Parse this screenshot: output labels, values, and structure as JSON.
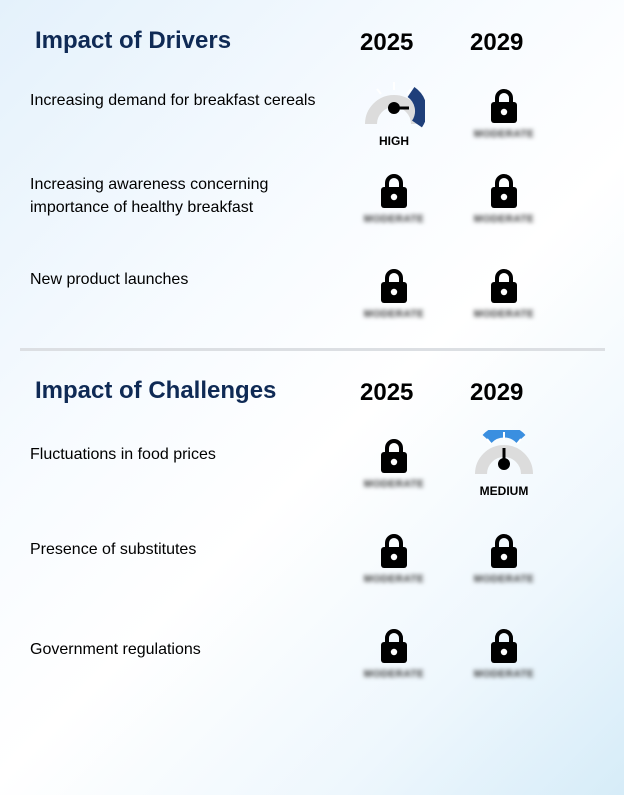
{
  "drivers": {
    "title": "Impact of Drivers",
    "year_1": "2025",
    "year_2": "2029",
    "rows": [
      {
        "label": "Increasing demand for breakfast cereals",
        "cell_2025": {
          "type": "gauge",
          "level": "HIGH",
          "fill_color": "#1f3f7a"
        },
        "cell_2029": {
          "type": "locked",
          "hidden_text": "MODERATE"
        }
      },
      {
        "label": "Increasing awareness concerning importance of healthy breakfast",
        "cell_2025": {
          "type": "locked",
          "hidden_text": "MODERATE"
        },
        "cell_2029": {
          "type": "locked",
          "hidden_text": "MODERATE"
        }
      },
      {
        "label": "New product launches",
        "cell_2025": {
          "type": "locked",
          "hidden_text": "MODERATE"
        },
        "cell_2029": {
          "type": "locked",
          "hidden_text": "MODERATE"
        }
      }
    ]
  },
  "challenges": {
    "title": "Impact of Challenges",
    "year_1": "2025",
    "year_2": "2029",
    "rows": [
      {
        "label": "Fluctuations in food prices",
        "cell_2025": {
          "type": "locked",
          "hidden_text": "MODERATE"
        },
        "cell_2029": {
          "type": "gauge",
          "level": "MEDIUM",
          "fill_color": "#3a8fe0"
        }
      },
      {
        "label": "Presence of substitutes",
        "cell_2025": {
          "type": "locked",
          "hidden_text": "MODERATE"
        },
        "cell_2029": {
          "type": "locked",
          "hidden_text": "MODERATE"
        }
      },
      {
        "label": "Government regulations",
        "cell_2025": {
          "type": "locked",
          "hidden_text": "MODERATE"
        },
        "cell_2029": {
          "type": "locked",
          "hidden_text": "MODERATE"
        }
      }
    ]
  },
  "colors": {
    "title": "#0f2a55",
    "gauge_track": "#dcdcdc",
    "high": "#1f3f7a",
    "medium": "#3a8fe0"
  },
  "icons": {
    "locked_cell": "lock-icon",
    "gauge_cell": "gauge-icon"
  }
}
